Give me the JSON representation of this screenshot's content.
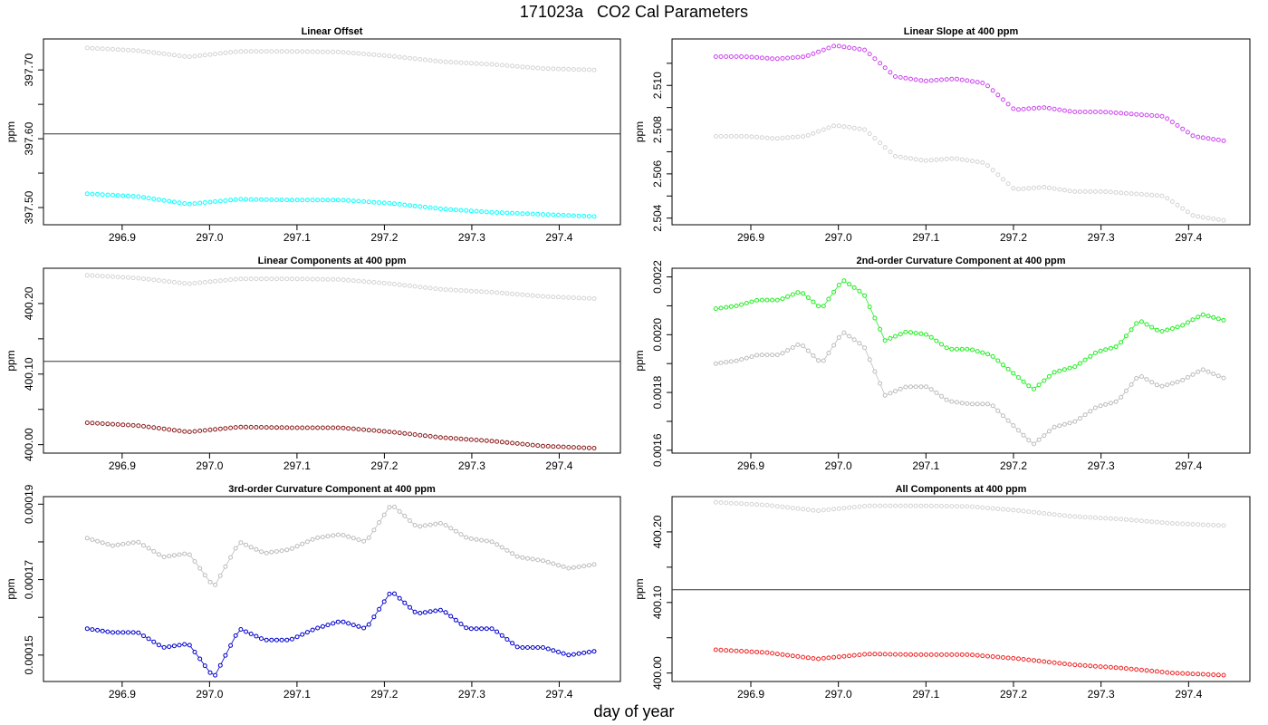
{
  "page": {
    "title": "171023a   CO2 Cal Parameters",
    "xlabel": "day of year"
  },
  "chart_data": [
    {
      "type": "scatter",
      "title": "Linear Offset",
      "ylabel": "ppm",
      "xlim": [
        296.81,
        297.47
      ],
      "ylim": [
        397.475,
        397.745
      ],
      "xticks": [
        296.9,
        297.0,
        297.1,
        297.2,
        297.3,
        297.4
      ],
      "xtick_labels": [
        "296.9",
        "297.0",
        "297.1",
        "297.2",
        "297.3",
        "297.4"
      ],
      "yticks": [
        397.5,
        397.55,
        397.6,
        397.65,
        397.7
      ],
      "ytick_labels": [
        "397.50",
        "",
        "397.60",
        "",
        "397.70"
      ],
      "hline": 397.607,
      "line": false,
      "x_start": 296.86,
      "x_end": 297.44,
      "series": [
        {
          "color": "#d3d3d3",
          "values": [
            397.732,
            397.728,
            397.719,
            397.727,
            397.727,
            397.726,
            397.72,
            397.712,
            397.708,
            397.702,
            397.7
          ]
        },
        {
          "color": "#00ffff",
          "values": [
            397.52,
            397.516,
            397.505,
            397.512,
            397.511,
            397.511,
            397.506,
            397.498,
            397.493,
            397.49,
            397.487
          ]
        }
      ]
    },
    {
      "type": "scatter",
      "title": "Linear Slope at 400 ppm",
      "ylabel": "ppm",
      "xlim": [
        296.81,
        297.47
      ],
      "ylim": [
        2.5037,
        2.5121
      ],
      "xticks": [
        296.9,
        297.0,
        297.1,
        297.2,
        297.3,
        297.4
      ],
      "xtick_labels": [
        "296.9",
        "297.0",
        "297.1",
        "297.2",
        "297.3",
        "297.4"
      ],
      "yticks": [
        2.504,
        2.505,
        2.506,
        2.507,
        2.508,
        2.509,
        2.51,
        2.511
      ],
      "ytick_labels": [
        "2.504",
        "",
        "2.506",
        "",
        "2.508",
        "",
        "2.510",
        ""
      ],
      "hline": null,
      "line": false,
      "x_start": 296.86,
      "x_end": 297.44,
      "series": [
        {
          "color": "#d3d3d3",
          "values": [
            2.5077,
            2.5077,
            2.5076,
            2.5077,
            2.5082,
            2.508,
            2.5068,
            2.5066,
            2.5067,
            2.5065,
            2.5053,
            2.5054,
            2.5052,
            2.5052,
            2.5051,
            2.505,
            2.5041,
            2.5039
          ]
        },
        {
          "color": "#cc44ee",
          "values": [
            2.5113,
            2.5113,
            2.5112,
            2.5113,
            2.5118,
            2.5116,
            2.5104,
            2.5102,
            2.5103,
            2.5101,
            2.5089,
            2.509,
            2.5088,
            2.5088,
            2.5087,
            2.5086,
            2.5077,
            2.5075
          ]
        }
      ]
    },
    {
      "type": "scatter",
      "title": "Linear Components at 400 ppm",
      "ylabel": "ppm",
      "xlim": [
        296.81,
        297.47
      ],
      "ylim": [
        399.988,
        400.25
      ],
      "xticks": [
        296.9,
        297.0,
        297.1,
        297.2,
        297.3,
        297.4
      ],
      "xtick_labels": [
        "296.9",
        "297.0",
        "297.1",
        "297.2",
        "297.3",
        "297.4"
      ],
      "yticks": [
        400.0,
        400.05,
        400.1,
        400.15,
        400.2
      ],
      "ytick_labels": [
        "400.00",
        "",
        "400.10",
        "",
        "400.20"
      ],
      "hline": 400.118,
      "line": false,
      "x_start": 296.86,
      "x_end": 297.44,
      "series": [
        {
          "color": "#d3d3d3",
          "values": [
            400.24,
            400.236,
            400.228,
            400.235,
            400.235,
            400.234,
            400.228,
            400.22,
            400.216,
            400.21,
            400.207
          ]
        },
        {
          "color": "#8b1a1a",
          "values": [
            400.031,
            400.027,
            400.018,
            400.025,
            400.024,
            400.024,
            400.018,
            400.01,
            400.005,
            399.998,
            399.995
          ]
        }
      ]
    },
    {
      "type": "scatter",
      "title": "2nd-order Curvature Component at 400 ppm",
      "ylabel": "ppm",
      "xlim": [
        296.81,
        297.47
      ],
      "ylim": [
        0.00159,
        0.00223
      ],
      "xticks": [
        296.9,
        297.0,
        297.1,
        297.2,
        297.3,
        297.4
      ],
      "xtick_labels": [
        "296.9",
        "297.0",
        "297.1",
        "297.2",
        "297.3",
        "297.4"
      ],
      "yticks": [
        0.0016,
        0.0017,
        0.0018,
        0.0019,
        0.002,
        0.0021,
        0.0022
      ],
      "ytick_labels": [
        "0.0016",
        "",
        "0.0018",
        "",
        "0.0020",
        "",
        "0.0022"
      ],
      "hline": null,
      "line": true,
      "x_start": 296.86,
      "x_end": 297.44,
      "series": [
        {
          "color": "#bdbdbd",
          "values": [
            0.0019,
            0.00191,
            0.00193,
            0.00193,
            0.00197,
            0.0019,
            0.00201,
            0.00196,
            0.00179,
            0.00182,
            0.00182,
            0.00177,
            0.00176,
            0.00176,
            0.00169,
            0.00162,
            0.00168,
            0.0017,
            0.00175,
            0.00177,
            0.00186,
            0.00182,
            0.00184,
            0.00188,
            0.00185
          ]
        },
        {
          "color": "#22ee22",
          "values": [
            0.00209,
            0.0021,
            0.00212,
            0.00212,
            0.00215,
            0.00209,
            0.00219,
            0.00214,
            0.00198,
            0.00201,
            0.002,
            0.00195,
            0.00195,
            0.00193,
            0.00187,
            0.00181,
            0.00187,
            0.00189,
            0.00194,
            0.00196,
            0.00205,
            0.00201,
            0.00203,
            0.00207,
            0.00205
          ]
        }
      ]
    },
    {
      "type": "scatter",
      "title": "3rd-order Curvature Component at 400 ppm",
      "ylabel": "ppm",
      "xlim": [
        296.81,
        297.47
      ],
      "ylim": [
        0.000143,
        0.000192
      ],
      "xticks": [
        296.9,
        297.0,
        297.1,
        297.2,
        297.3,
        297.4
      ],
      "xtick_labels": [
        "296.9",
        "297.0",
        "297.1",
        "297.2",
        "297.3",
        "297.4"
      ],
      "yticks": [
        0.00015,
        0.00016,
        0.00017,
        0.00018,
        0.00019
      ],
      "ytick_labels": [
        "0.00015",
        "",
        "0.00017",
        "",
        "0.00019"
      ],
      "hline": null,
      "line": true,
      "x_start": 296.86,
      "x_end": 297.44,
      "series": [
        {
          "color": "#bdbdbd",
          "values": [
            0.000181,
            0.000179,
            0.00018,
            0.000176,
            0.000177,
            0.000168,
            0.00018,
            0.000177,
            0.000178,
            0.000181,
            0.000182,
            0.00018,
            0.00019,
            0.000184,
            0.000185,
            0.000181,
            0.00018,
            0.000176,
            0.000175,
            0.000173,
            0.000174
          ]
        },
        {
          "color": "#0000cc",
          "values": [
            0.000157,
            0.000156,
            0.000156,
            0.000152,
            0.000153,
            0.000144,
            0.000157,
            0.000154,
            0.000154,
            0.000157,
            0.000159,
            0.000157,
            0.000167,
            0.000161,
            0.000162,
            0.000157,
            0.000157,
            0.000152,
            0.000152,
            0.00015,
            0.000151
          ]
        }
      ]
    },
    {
      "type": "scatter",
      "title": "All Components at 400 ppm",
      "ylabel": "ppm",
      "xlim": [
        296.81,
        297.47
      ],
      "ylim": [
        399.988,
        400.25
      ],
      "xticks": [
        296.9,
        297.0,
        297.1,
        297.2,
        297.3,
        297.4
      ],
      "xtick_labels": [
        "296.9",
        "297.0",
        "297.1",
        "297.2",
        "297.3",
        "297.4"
      ],
      "yticks": [
        400.0,
        400.05,
        400.1,
        400.15,
        400.2
      ],
      "ytick_labels": [
        "400.00",
        "",
        "400.10",
        "",
        "400.20"
      ],
      "hline": 400.118,
      "line": false,
      "x_start": 296.86,
      "x_end": 297.44,
      "series": [
        {
          "color": "#d3d3d3",
          "values": [
            400.242,
            400.238,
            400.23,
            400.237,
            400.237,
            400.236,
            400.23,
            400.222,
            400.218,
            400.212,
            400.209
          ]
        },
        {
          "color": "#ee2222",
          "values": [
            400.033,
            400.029,
            400.02,
            400.027,
            400.026,
            400.026,
            400.02,
            400.012,
            400.007,
            400.0,
            399.997
          ]
        }
      ]
    }
  ]
}
